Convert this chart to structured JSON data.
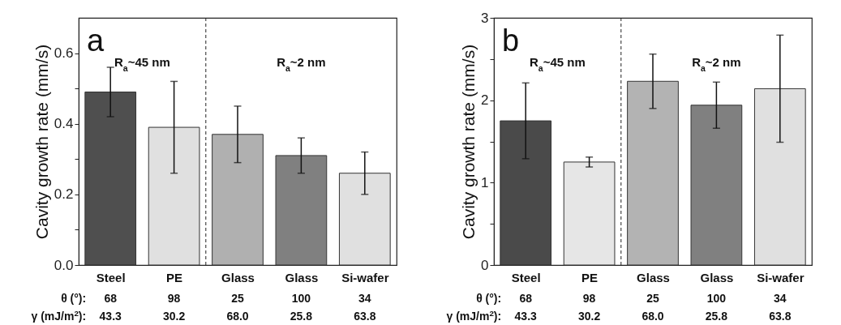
{
  "chart_data": [
    {
      "type": "bar",
      "ylabel": "Cavity growth rate (mm/s)",
      "categories": [
        "Steel",
        "PE",
        "Glass",
        "Glass",
        "Si-wafer"
      ],
      "values": [
        0.49,
        0.39,
        0.37,
        0.31,
        0.26
      ],
      "errors": [
        0.07,
        0.13,
        0.08,
        0.05,
        0.06
      ],
      "colors": [
        "#4f4f4f",
        "#e0e0e0",
        "#b0b0b0",
        "#808080",
        "#e0e0e0"
      ],
      "ylim": [
        0,
        0.7
      ],
      "yticks": [
        {
          "value": 0,
          "label": "0.0"
        },
        {
          "value": 0.1,
          "label": null
        },
        0.2,
        {
          "value": 0.3,
          "label": null
        },
        0.4,
        {
          "value": 0.5,
          "label": null
        },
        0.6
      ],
      "annotations": [
        "a",
        "R$_{a}$~45 nm",
        "R$_{a}$~2 nm",
        "θ (°):",
        "68",
        "98",
        "25",
        "100",
        "34",
        "γ (mJ/m$^{2}$):",
        "43.3",
        "30.2",
        "68.0",
        "25.8",
        "63.8"
      ]
    },
    {
      "type": "bar",
      "ylabel": "Cavity growth rate (mm/s)",
      "categories": [
        "Steel",
        "PE",
        "Glass",
        "Glass",
        "Si-wafer"
      ],
      "values": [
        1.75,
        1.25,
        2.23,
        1.94,
        2.14
      ],
      "errors": [
        0.46,
        0.06,
        0.33,
        0.28,
        0.65
      ],
      "colors": [
        "#4a4a4a",
        "#e6e6e6",
        "#b3b3b3",
        "#808080",
        "#e0e0e0"
      ],
      "ylim": [
        0,
        3
      ],
      "yticks": [
        0,
        {
          "value": 0.5,
          "label": null
        },
        1,
        {
          "value": 1.5,
          "label": null
        },
        2,
        {
          "value": 2.5,
          "label": null
        },
        3
      ],
      "annotations": [
        "b",
        "R$_{a}$~45 nm",
        "R$_{a}$~2 nm",
        "θ (°):",
        "68",
        "98",
        "25",
        "100",
        "34",
        "γ (mJ/m$^{2}$):",
        "43.3",
        "30.2",
        "68.0",
        "25.8",
        "63.8"
      ]
    }
  ]
}
